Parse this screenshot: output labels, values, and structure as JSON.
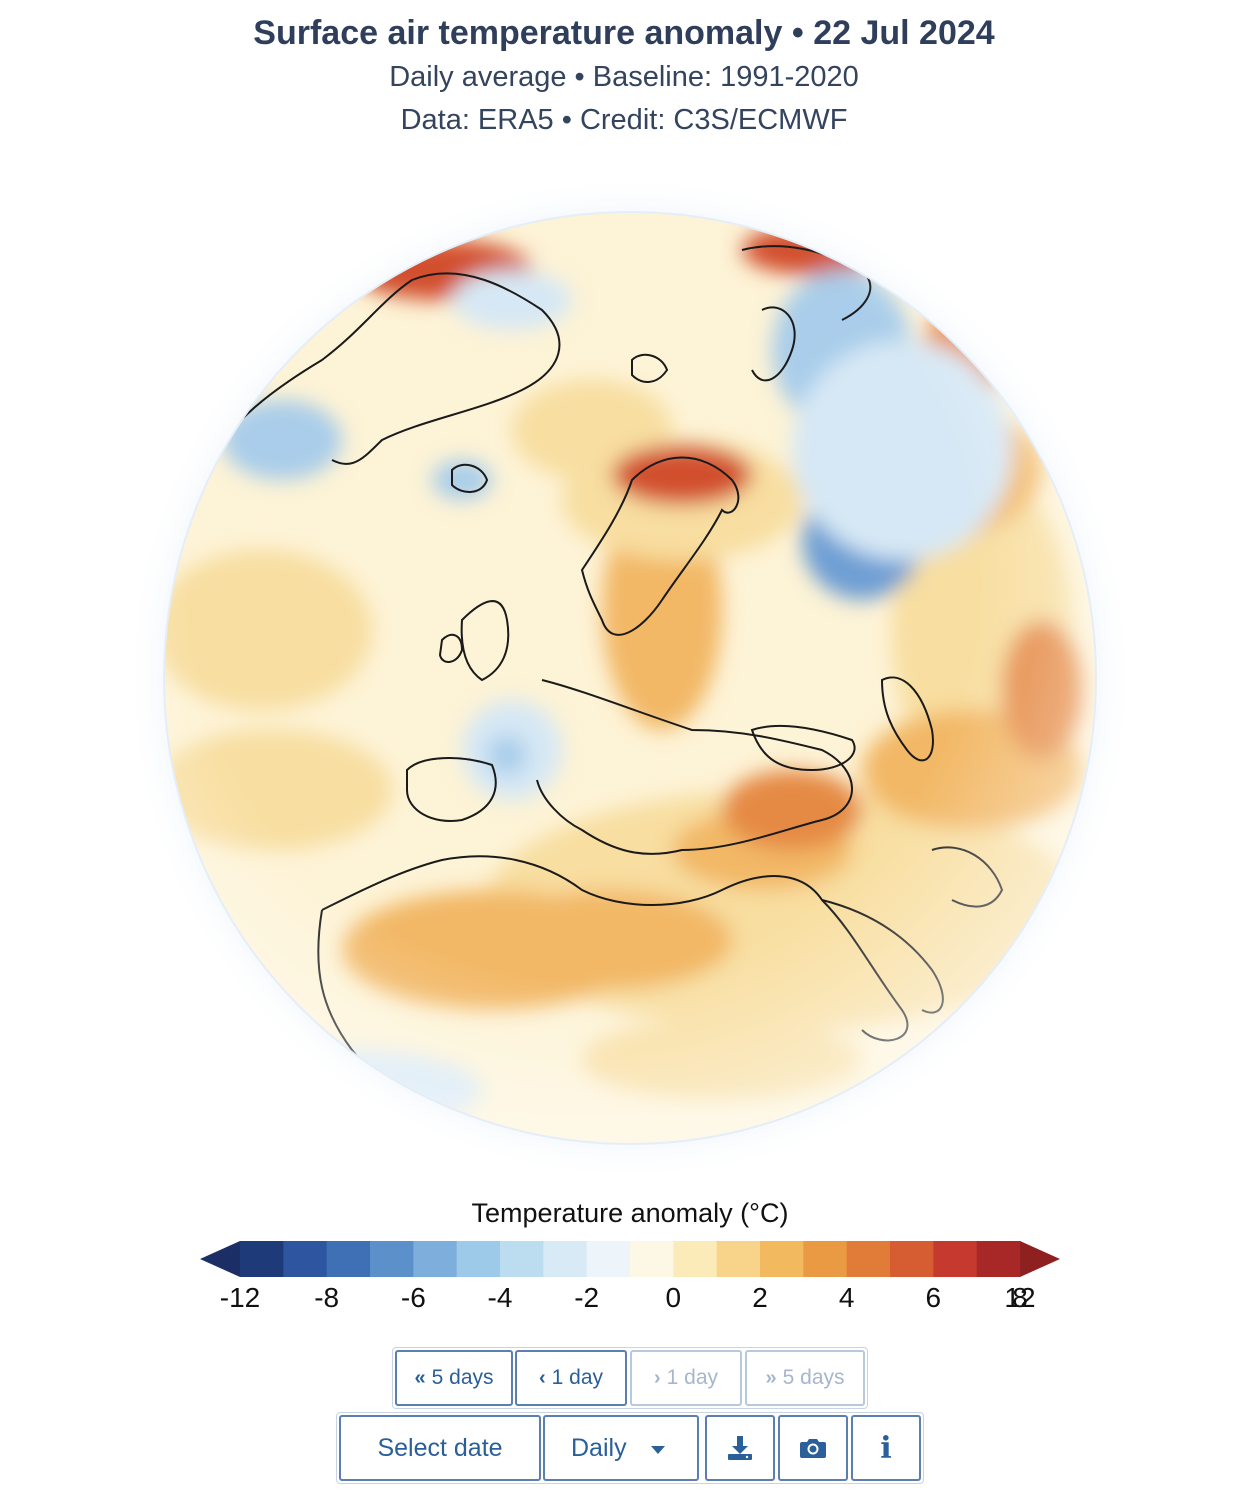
{
  "header": {
    "title": "Surface air temperature anomaly • 22 Jul 2024",
    "subtitle_line1": "Daily average • Baseline: 1991-2020",
    "subtitle_line2": "Data: ERA5 • Credit: C3S/ECMWF"
  },
  "legend": {
    "title": "Temperature anomaly (°C)",
    "tick_labels": [
      "-12",
      "-8",
      "-6",
      "-4",
      "-2",
      "0",
      "2",
      "4",
      "6",
      "8",
      "12"
    ],
    "colors": [
      "#1f3a78",
      "#2e55a0",
      "#3f6fb5",
      "#5c90ca",
      "#7eafdc",
      "#9ccae8",
      "#bcdcf0",
      "#d8eaf5",
      "#eef5fa",
      "#fdf8e6",
      "#fbebb8",
      "#f7d489",
      "#f3b95e",
      "#eb9a44",
      "#e07c38",
      "#d65c32",
      "#c6392f",
      "#a82828"
    ],
    "under_color": "#1b2f66",
    "over_color": "#8e2020"
  },
  "navigation": {
    "back5": "5 days",
    "back1": "1 day",
    "fwd1": "1 day",
    "fwd5": "5 days"
  },
  "controls": {
    "select_date": "Select date",
    "frequency": "Daily"
  },
  "icons": {
    "double_left": "«",
    "single_left": "‹",
    "single_right": "›",
    "double_right": "»",
    "dropdown": "caret-down-icon",
    "download": "download-icon",
    "camera": "camera-icon",
    "info": "i"
  },
  "palette": {
    "globe_base": "#fdf3d6",
    "warm_light": "#f8dea0",
    "warm": "#f2b866",
    "warm_strong": "#e58a45",
    "hot": "#d2502e",
    "cool_light": "#d6e8f5",
    "cool": "#a9cdea",
    "cold": "#6e9fd4",
    "coast": "#1a1a1a",
    "accent": "#2a5f9a"
  }
}
